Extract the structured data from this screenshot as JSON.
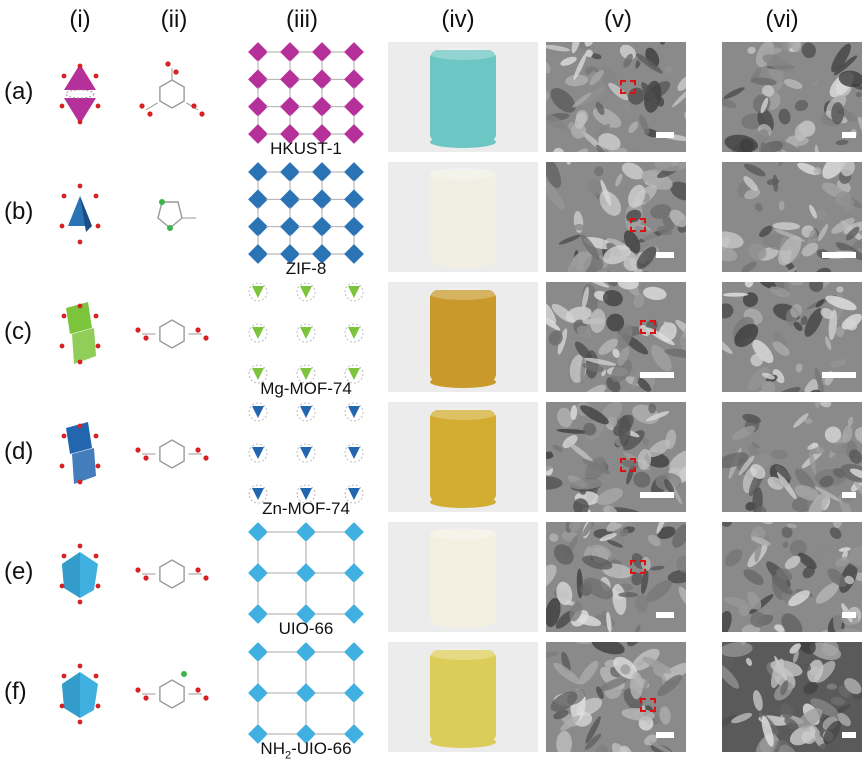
{
  "columns": [
    "(i)",
    "(ii)",
    "(iii)",
    "(iv)",
    "(v)",
    "(vi)"
  ],
  "rows": [
    {
      "label": "(a)",
      "mof": "HKUST-1",
      "mof_sub": "",
      "mof_tail": "",
      "node_color": "#b5309b",
      "photo_color": "#6cc6c3"
    },
    {
      "label": "(b)",
      "mof": "ZIF-8",
      "mof_sub": "",
      "mof_tail": "",
      "node_color": "#2a74b6",
      "photo_color": "#f1efe3"
    },
    {
      "label": "(c)",
      "mof": "Mg-MOF-74",
      "mof_sub": "",
      "mof_tail": "",
      "node_color": "#7cc43c",
      "photo_color": "#c99a2b"
    },
    {
      "label": "(d)",
      "mof": "Zn-MOF-74",
      "mof_sub": "",
      "mof_tail": "",
      "node_color": "#2366b0",
      "photo_color": "#d2ad32"
    },
    {
      "label": "(e)",
      "mof": "UIO-66",
      "mof_sub": "",
      "mof_tail": "",
      "node_color": "#3fb0e0",
      "photo_color": "#f3f0e2"
    },
    {
      "label": "(f)",
      "mof": "NH",
      "mof_sub": "2",
      "mof_tail": "-UIO-66",
      "node_color": "#3fb0e0",
      "photo_color": "#dccd5a"
    }
  ]
}
